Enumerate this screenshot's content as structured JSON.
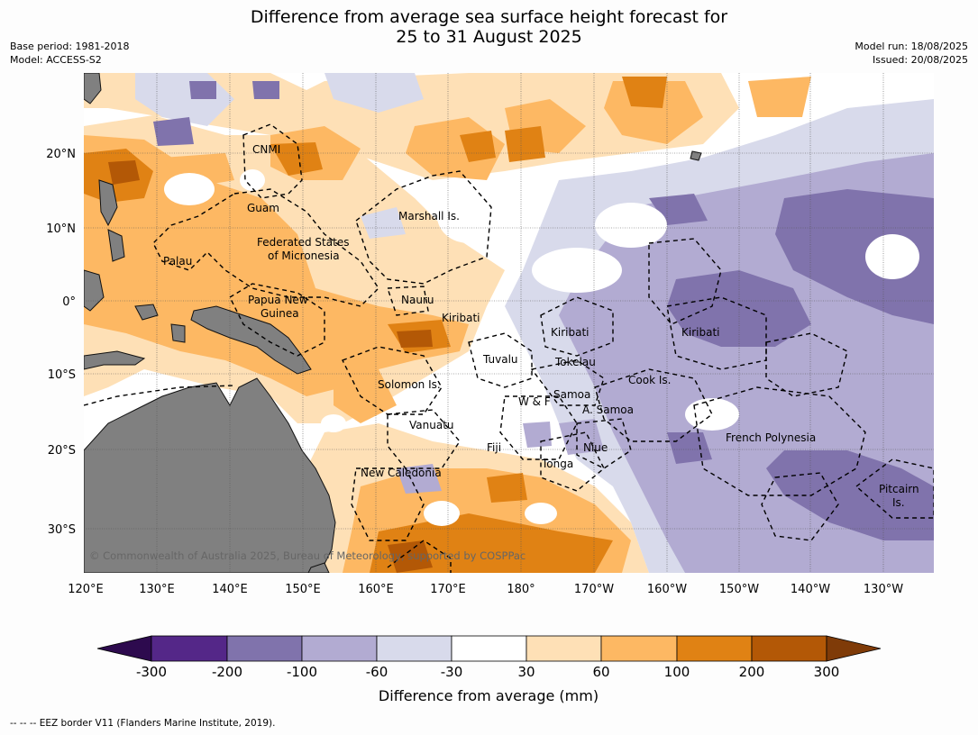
{
  "header": {
    "title_line1": "Difference from average sea surface height forecast for",
    "title_line2": "25 to 31 August 2025",
    "base_period": "Base period: 1981-2018",
    "model": "Model: ACCESS-S2",
    "model_run": "Model run: 18/08/2025",
    "issued": "Issued: 20/08/2025"
  },
  "map": {
    "lon_labels": [
      "120°E",
      "130°E",
      "140°E",
      "150°E",
      "160°E",
      "170°E",
      "180°",
      "170°W",
      "160°W",
      "150°W",
      "140°W",
      "130°W"
    ],
    "lat_labels": [
      "20°N",
      "10°N",
      "0°",
      "10°S",
      "20°S",
      "30°S"
    ],
    "region_labels": {
      "cnmi": "CNMI",
      "guam": "Guam",
      "marshall": "Marshall Is.",
      "fsm1": "Federated States",
      "fsm2": "of Micronesia",
      "palau": "Palau",
      "png1": "Papua New",
      "png2": "Guinea",
      "nauru": "Nauru",
      "kiribati1": "Kiribati",
      "kiribati2": "Kiribati",
      "kiribati3": "Kiribati",
      "tuvalu": "Tuvalu",
      "tokelau": "Tokelau",
      "cook": "Cook Is.",
      "solomon": "Solomon Is.",
      "wf": "W & F",
      "samoa": "Samoa",
      "asamoa": "A. Samoa",
      "vanuatu": "Vanuatu",
      "fiji": "Fiji",
      "niue": "Niue",
      "frpoly": "French Polynesia",
      "tonga": "Tonga",
      "newcal": "New Caledonia",
      "pitcairn1": "Pitcairn",
      "pitcairn2": "Is."
    },
    "copyright": "© Commonwealth of Australia 2025, Bureau of Meteorology, supported by COSPPac",
    "colors": {
      "land": "#808080",
      "neg_300": "#2d0a4e",
      "neg_200": "#542788",
      "neg_100": "#8073ac",
      "neg_60": "#b2abd2",
      "neg_30": "#d8daeb",
      "neutral": "#ffffff",
      "pos_30": "#fee0b6",
      "pos_60": "#fdb863",
      "pos_100": "#e08214",
      "pos_200": "#b35806",
      "pos_300": "#7f3b08"
    }
  },
  "colorbar": {
    "ticks": [
      "-300",
      "-200",
      "-100",
      "-60",
      "-30",
      "30",
      "60",
      "100",
      "200",
      "300"
    ],
    "label": "Difference from average (mm)"
  },
  "footer": {
    "eez": "--  --  -- EEZ border V11 (Flanders Marine Institute, 2019)."
  }
}
